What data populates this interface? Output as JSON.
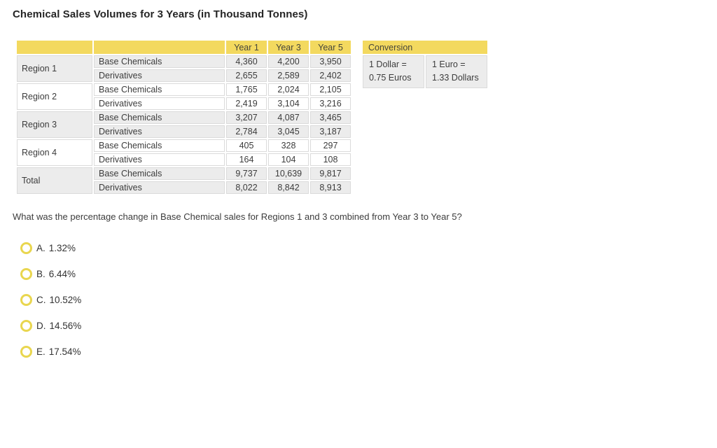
{
  "title": "Chemical Sales Volumes for 3 Years (in Thousand Tonnes)",
  "sales_table": {
    "year_headers": [
      "Year 1",
      "Year 3",
      "Year 5"
    ],
    "groups": [
      {
        "region": "Region 1",
        "rows": [
          {
            "type": "Base Chemicals",
            "values": [
              "4,360",
              "4,200",
              "3,950"
            ]
          },
          {
            "type": "Derivatives",
            "values": [
              "2,655",
              "2,589",
              "2,402"
            ]
          }
        ]
      },
      {
        "region": "Region 2",
        "rows": [
          {
            "type": "Base Chemicals",
            "values": [
              "1,765",
              "2,024",
              "2,105"
            ]
          },
          {
            "type": "Derivatives",
            "values": [
              "2,419",
              "3,104",
              "3,216"
            ]
          }
        ]
      },
      {
        "region": "Region 3",
        "rows": [
          {
            "type": "Base Chemicals",
            "values": [
              "3,207",
              "4,087",
              "3,465"
            ]
          },
          {
            "type": "Derivatives",
            "values": [
              "2,784",
              "3,045",
              "3,187"
            ]
          }
        ]
      },
      {
        "region": "Region 4",
        "rows": [
          {
            "type": "Base Chemicals",
            "values": [
              "405",
              "328",
              "297"
            ]
          },
          {
            "type": "Derivatives",
            "values": [
              "164",
              "104",
              "108"
            ]
          }
        ]
      },
      {
        "region": "Total",
        "rows": [
          {
            "type": "Base Chemicals",
            "values": [
              "9,737",
              "10,639",
              "9,817"
            ]
          },
          {
            "type": "Derivatives",
            "values": [
              "8,022",
              "8,842",
              "8,913"
            ]
          }
        ]
      }
    ]
  },
  "conversion_table": {
    "header": "Conversion",
    "cells": [
      {
        "line1": "1 Dollar =",
        "line2": "0.75 Euros"
      },
      {
        "line1": "1 Euro =",
        "line2": "1.33 Dollars"
      }
    ]
  },
  "question": "What was the percentage change in Base Chemical sales for Regions 1 and 3 combined from Year 3 to Year 5?",
  "options": [
    {
      "label": "A.",
      "value": "1.32%"
    },
    {
      "label": "B.",
      "value": "6.44%"
    },
    {
      "label": "C.",
      "value": "10.52%"
    },
    {
      "label": "D.",
      "value": "14.56%"
    },
    {
      "label": "E.",
      "value": "17.54%"
    }
  ],
  "colors": {
    "header_yellow": "#f3d95f",
    "row_gray": "#ececec",
    "cell_border": "#dbdbdb",
    "radio_ring": "#e9d64f",
    "text": "#3c3c3c"
  }
}
